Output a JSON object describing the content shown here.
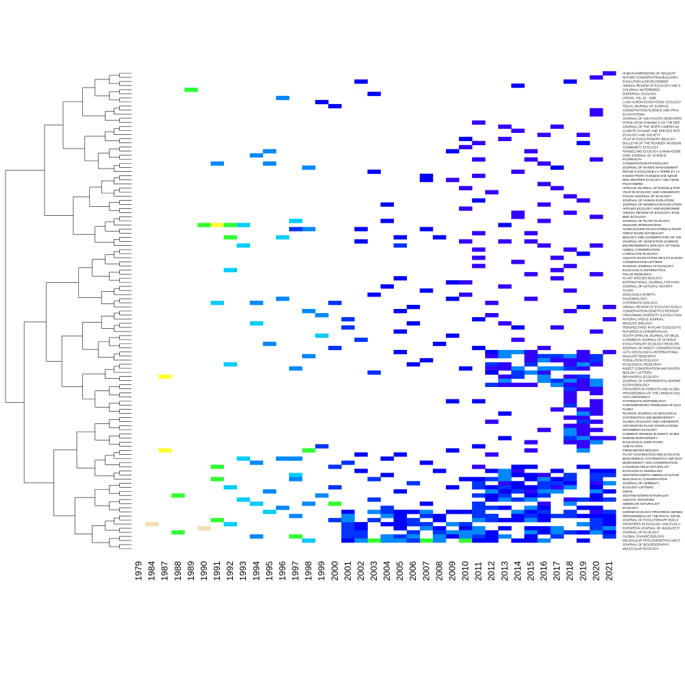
{
  "chart_data": {
    "type": "heatmap",
    "title": "",
    "xlabel": "",
    "ylabel": "",
    "dendrogram": "left",
    "x": [
      "1979",
      "1984",
      "1987",
      "1988",
      "1989",
      "1990",
      "1991",
      "1992",
      "1993",
      "1994",
      "1995",
      "1996",
      "1997",
      "1998",
      "1999",
      "2000",
      "2001",
      "2002",
      "2003",
      "2004",
      "2005",
      "2006",
      "2007",
      "2008",
      "2009",
      "2010",
      "2011",
      "2012",
      "2013",
      "2014",
      "2015",
      "2016",
      "2017",
      "2018",
      "2019",
      "2020",
      "2021"
    ],
    "colorscale": [
      "#f5deb3",
      "#ffff33",
      "#33ff33",
      "#00ccff",
      "#0088ff",
      "#0033ff",
      "#0000ff",
      "#3300ff"
    ],
    "rows": [
      "HUMAN DIMENSIONS OF WILDLIFE",
      "NATURE CONSERVATION-BULGARIA",
      "EVOLUTION & DEVELOPMENT",
      "ANNUAL REVIEW OF ECOLOGY AND S",
      "COLONIAL WATERBIRDS",
      "DISPERSAL ECOLOGY",
      "URSUS, VOL 10 - 1998",
      "LAKE HURON ECOSYSTEM: ECOLOGY",
      "TEXAS JOURNAL OF SCIENCE",
      "CONSERVATION SCIENCE AND PRAC",
      "ECOSYSTEMS",
      "JOURNAL OF ASIA-PACIFIC BIODIVERS",
      "POPULATION DYNAMICS OF THE REE",
      "JOURNAL OF THE NORTH AMERICAN",
      "CLIMATE CHANGE AND SPECIES INTE",
      "ECOLOGY AND SOCIETY",
      "YEAR IN EVOLUTIONARY BIOLOGY",
      "BULLETIN OF THE PEABODY MUSEUM",
      "COMMUNITY ECOLOGY",
      "RANGELAND ECOLOGY & MANAGEME",
      "OHIO JOURNAL OF SCIENCE",
      "ECOHEALTH",
      "CONSERVATION PHYSIOLOGY",
      "JOURNAL OF RANGE MANAGEMENT",
      "REVUE D ECOLOGIE-LA TERRE ET LA",
      "Invasive Plants: Ecological and Agricult",
      "RED SNAPPER ECOLOGY AND FISHE",
      "PACHYDERM",
      "AFRICAN JOURNAL OF RANGE & FOR",
      "YEAR IN ECOLOGY AND CONSERVATI",
      "POLISH JOURNAL OF ECOLOGY",
      "JOURNAL OF HUMAN EVOLUTION",
      "JOURNAL OF MAMMALIAN EVOLUTION",
      "APPLIED ECOLOGY AND ENVIRONME",
      "ANNUAL REVIEW OF ECOLOGY, EVOL",
      "BMC ECOLOGY",
      "JOURNAL OF PLANT ECOLOGY",
      "WILDLIFE MONOGRAPHS",
      "AGRICULTURE ECOSYSTEMS & ENVIR",
      "GREAT BASIN NATURALIST",
      "BIOLOGY AND CONSERVATION OF OW",
      "JOURNAL OF VEGETATION SCIENCE",
      "ENVIRONMENTAL BIOLOGY OF FISHE",
      "ANIMAL CONSERVATION",
      "LANDSCAPE ECOLOGY",
      "AQUATIC ECOSYSTEM HEALTH & MANA",
      "CONSERVATION LETTERS",
      "RUSSIAN JOURNAL OF ECOLOGY",
      "ECOLOGICAL INFORMATICS",
      "POLAR RESEARCH",
      "PLANT SPECIES BIOLOGY",
      "INTERNATIONAL JOURNAL FOR PARA",
      "JOURNAL OF NATURAL HISTORY",
      "TAXON",
      "ZOOLOGICA SCRIPTA",
      "PALEOBIOLOGY",
      "SYSTEMATIC BIOLOGY",
      "ANNUAL REVIEW OF ECOLOGY EVOLU",
      "CONSERVATION GENETICS RESOUR",
      "ORGANISMS DIVERSITY & EVOLUTION",
      "NATURAL AREAS JOURNAL",
      "WILDLIFE BIOLOGY",
      "PERSPECTIVES IN PLANT ECOLOGY E",
      "NATUREZA & CONSERVACAO",
      "SOUTH AFRICAN JOURNAL OF WILDL",
      "CARIBBEAN JOURNAL OF SCIENCE",
      "EVOLUTIONARY ECOLOGY RESEARC",
      "JOURNAL OF INSECT CONSERVATION",
      "ACTA OECOLOGICA-INTERNATIONAL",
      "WILDLIFE RESEARCH",
      "POPULATION ECOLOGY",
      "ECOLOGICAL RESEARCH",
      "INSECT CONSERVATION AND DIVERS",
      "BIOLOGY LETTERS",
      "BEHAVIORAL ECOLOGY",
      "JOURNAL OF EXPERIMENTAL MARINE",
      "ECOHYDROLOGY",
      "FRONTIERS IN FORESTS AND GLOBA",
      "PROCEEDINGS OF THE LINNEAN SOC",
      "ACTA AMAZONICA",
      "SYSTEMATIC ENTOMOLOGY",
      "CONTEMPORARY PROBLEMS OF ECO",
      "FLORA",
      "RUSSIAN JOURNAL OF BIOLOGICAL",
      "SYSTEMATICS AND BIODIVERSITY",
      "GLOBAL ECOLOGY AND CONSERVAT",
      "ARTHROPOD-PLANT INTERACTIONS",
      "MOVEMENT ECOLOGY",
      "CURRENT OPINION IN INSECT SCIEN",
      "MARINE BIODIVERSITY",
      "ECOLOGICAL INDICATORS",
      "AOB PLANTS",
      "FRESHWATER BIOLOGY",
      "PLANT SYSTEMATICS AND EVOLUTIO",
      "BIOCHEMICAL SYSTEMATICS AND ECO",
      "BIODIVERSITY AND CONSERVATION",
      "CANADIAN FIELD-NATURALIST",
      "ECOLOGICAL MODELLING",
      "WESTERN NORTH AMERICAN NATUR",
      "BIOLOGICAL CONSERVATION",
      "JOURNAL OF HEREDITY",
      "ECOLOGY LETTERS",
      "OIKOS",
      "SOUTHEASTERN NATURALIST",
      "AQUATIC INVASIONS",
      "AMERICAN NATURALIST",
      "ECOLOGY",
      "MARINE ECOLOGY PROGRESS SERIES",
      "PROCEEDINGS OF THE ROYAL SOCIE",
      "JOURNAL OF EVOLUTIONARY BIOLO",
      "FRONTIERS IN ECOLOGY AND EVOLU",
      "EUROPEAN JOURNAL OF WILDLIFE R",
      "JOURNAL OF ECOLOGY",
      "GLOBAL CHANGE BIOLOGY",
      "MOLECULAR PHYLOGENETICS AND E",
      "JOURNAL OF BIOGEOGRAPHY",
      "MOLECULAR ECOLOGY"
    ],
    "cells": [
      [
        0,
        36,
        7
      ],
      [
        1,
        35,
        7
      ],
      [
        2,
        17,
        6
      ],
      [
        2,
        33,
        6
      ],
      [
        3,
        29,
        6
      ],
      [
        4,
        4,
        2
      ],
      [
        5,
        18,
        6
      ],
      [
        6,
        11,
        4
      ],
      [
        7,
        14,
        6
      ],
      [
        8,
        15,
        6
      ],
      [
        9,
        35,
        7
      ],
      [
        10,
        35,
        7
      ],
      [
        12,
        26,
        7
      ],
      [
        13,
        28,
        7
      ],
      [
        13,
        32,
        7
      ],
      [
        14,
        29,
        7
      ],
      [
        15,
        34,
        7
      ],
      [
        15,
        31,
        7
      ],
      [
        16,
        25,
        6
      ],
      [
        16,
        28,
        7
      ],
      [
        17,
        34,
        6
      ],
      [
        17,
        26,
        7
      ],
      [
        18,
        25,
        7
      ],
      [
        19,
        10,
        4
      ],
      [
        19,
        24,
        6
      ],
      [
        19,
        30,
        7
      ],
      [
        20,
        9,
        4
      ],
      [
        21,
        26,
        7
      ],
      [
        21,
        30,
        7
      ],
      [
        21,
        35,
        7
      ],
      [
        22,
        6,
        4
      ],
      [
        22,
        10,
        4
      ],
      [
        22,
        31,
        7
      ],
      [
        23,
        13,
        4
      ],
      [
        23,
        32,
        6
      ],
      [
        24,
        18,
        6
      ],
      [
        24,
        29,
        7
      ],
      [
        25,
        22,
        6
      ],
      [
        25,
        26,
        7
      ],
      [
        26,
        24,
        7
      ],
      [
        26,
        22,
        6
      ],
      [
        27,
        31,
        7
      ],
      [
        28,
        25,
        7
      ],
      [
        28,
        32,
        7
      ],
      [
        29,
        27,
        7
      ],
      [
        30,
        33,
        7
      ],
      [
        31,
        26,
        6
      ],
      [
        31,
        34,
        7
      ],
      [
        32,
        19,
        6
      ],
      [
        32,
        31,
        7
      ],
      [
        33,
        25,
        7
      ],
      [
        34,
        29,
        7
      ],
      [
        34,
        33,
        7
      ],
      [
        35,
        29,
        7
      ],
      [
        35,
        35,
        7
      ],
      [
        36,
        12,
        3
      ],
      [
        36,
        19,
        6
      ],
      [
        36,
        31,
        7
      ],
      [
        37,
        5,
        2
      ],
      [
        37,
        6,
        1
      ],
      [
        37,
        7,
        2
      ],
      [
        37,
        8,
        3
      ],
      [
        37,
        28,
        6
      ],
      [
        38,
        13,
        4
      ],
      [
        38,
        12,
        5
      ],
      [
        38,
        17,
        6
      ],
      [
        38,
        22,
        6
      ],
      [
        39,
        26,
        7
      ],
      [
        39,
        30,
        7
      ],
      [
        40,
        7,
        2
      ],
      [
        40,
        11,
        3
      ],
      [
        40,
        20,
        6
      ],
      [
        40,
        23,
        6
      ],
      [
        41,
        17,
        6
      ],
      [
        41,
        25,
        7
      ],
      [
        41,
        28,
        7
      ],
      [
        41,
        30,
        7
      ],
      [
        42,
        8,
        3
      ],
      [
        42,
        20,
        5
      ],
      [
        42,
        31,
        7
      ],
      [
        42,
        35,
        7
      ],
      [
        43,
        26,
        7
      ],
      [
        43,
        33,
        7
      ],
      [
        44,
        34,
        6
      ],
      [
        45,
        26,
        7
      ],
      [
        45,
        32,
        7
      ],
      [
        46,
        29,
        7
      ],
      [
        47,
        26,
        7
      ],
      [
        47,
        33,
        7
      ],
      [
        48,
        7,
        3
      ],
      [
        48,
        32,
        7
      ],
      [
        49,
        30,
        7
      ],
      [
        49,
        35,
        7
      ],
      [
        50,
        20,
        6
      ],
      [
        50,
        32,
        7
      ],
      [
        51,
        24,
        6
      ],
      [
        51,
        25,
        7
      ],
      [
        52,
        19,
        6
      ],
      [
        52,
        28,
        7
      ],
      [
        53,
        22,
        6
      ],
      [
        53,
        33,
        7
      ],
      [
        54,
        18,
        6
      ],
      [
        54,
        25,
        7
      ],
      [
        55,
        11,
        4
      ],
      [
        55,
        24,
        6
      ],
      [
        55,
        30,
        7
      ],
      [
        56,
        6,
        3
      ],
      [
        56,
        9,
        4
      ],
      [
        56,
        15,
        5
      ],
      [
        56,
        27,
        7
      ],
      [
        57,
        21,
        6
      ],
      [
        57,
        34,
        6
      ],
      [
        57,
        36,
        7
      ],
      [
        58,
        13,
        4
      ],
      [
        58,
        20,
        6
      ],
      [
        58,
        33,
        7
      ],
      [
        59,
        14,
        4
      ],
      [
        59,
        27,
        7
      ],
      [
        60,
        16,
        5
      ],
      [
        60,
        26,
        6
      ],
      [
        60,
        36,
        7
      ],
      [
        61,
        9,
        3
      ],
      [
        61,
        21,
        6
      ],
      [
        61,
        28,
        7
      ],
      [
        62,
        16,
        5
      ],
      [
        62,
        29,
        6
      ],
      [
        62,
        32,
        7
      ],
      [
        63,
        20,
        6
      ],
      [
        63,
        35,
        7
      ],
      [
        64,
        14,
        3
      ],
      [
        64,
        24,
        6
      ],
      [
        65,
        17,
        5
      ],
      [
        65,
        29,
        7
      ],
      [
        66,
        10,
        4
      ],
      [
        66,
        23,
        6
      ],
      [
        67,
        15,
        5
      ],
      [
        67,
        26,
        6
      ],
      [
        67,
        31,
        7
      ],
      [
        68,
        20,
        6
      ],
      [
        68,
        27,
        6
      ],
      [
        68,
        36,
        7
      ],
      [
        69,
        13,
        4
      ],
      [
        69,
        30,
        7
      ],
      [
        70,
        22,
        6
      ],
      [
        70,
        33,
        7
      ],
      [
        71,
        7,
        3
      ],
      [
        71,
        21,
        6
      ],
      [
        71,
        35,
        7
      ],
      [
        72,
        12,
        4
      ],
      [
        72,
        25,
        6
      ],
      [
        72,
        34,
        7
      ],
      [
        73,
        18,
        5
      ],
      [
        73,
        27,
        6
      ],
      [
        73,
        31,
        7
      ],
      [
        74,
        2,
        1
      ],
      [
        74,
        28,
        7
      ],
      [
        75,
        34,
        7
      ],
      [
        76,
        34,
        7
      ],
      [
        77,
        34,
        7
      ],
      [
        78,
        33,
        7
      ],
      [
        79,
        33,
        7
      ],
      [
        80,
        24,
        6
      ],
      [
        80,
        26,
        6
      ],
      [
        81,
        35,
        7
      ],
      [
        82,
        32,
        7
      ],
      [
        82,
        34,
        7
      ],
      [
        83,
        28,
        6
      ],
      [
        84,
        34,
        7
      ],
      [
        85,
        27,
        7
      ],
      [
        85,
        35,
        7
      ],
      [
        86,
        33,
        7
      ],
      [
        87,
        31,
        7
      ],
      [
        87,
        35,
        7
      ],
      [
        88,
        34,
        7
      ],
      [
        89,
        28,
        6
      ],
      [
        89,
        36,
        7
      ],
      [
        90,
        30,
        7
      ],
      [
        90,
        33,
        7
      ],
      [
        91,
        14,
        5
      ],
      [
        91,
        26,
        6
      ],
      [
        92,
        2,
        1
      ],
      [
        92,
        13,
        2
      ],
      [
        92,
        24,
        6
      ],
      [
        92,
        30,
        7
      ],
      [
        93,
        17,
        6
      ],
      [
        93,
        20,
        6
      ],
      [
        93,
        27,
        7
      ],
      [
        94,
        8,
        3
      ],
      [
        94,
        11,
        4
      ],
      [
        94,
        12,
        4
      ],
      [
        94,
        19,
        6
      ],
      [
        95,
        9,
        4
      ],
      [
        95,
        16,
        5
      ],
      [
        95,
        22,
        6
      ],
      [
        96,
        6,
        2
      ],
      [
        96,
        15,
        5
      ],
      [
        96,
        26,
        7
      ],
      [
        97,
        17,
        6
      ],
      [
        97,
        23,
        6
      ],
      [
        97,
        29,
        7
      ],
      [
        98,
        12,
        3
      ],
      [
        98,
        19,
        6
      ],
      [
        98,
        31,
        7
      ],
      [
        99,
        6,
        2
      ],
      [
        99,
        12,
        4
      ],
      [
        99,
        18,
        5
      ],
      [
        99,
        25,
        6
      ],
      [
        100,
        21,
        5
      ],
      [
        100,
        28,
        7
      ],
      [
        100,
        35,
        7
      ],
      [
        101,
        7,
        3
      ],
      [
        101,
        15,
        5
      ],
      [
        101,
        24,
        6
      ],
      [
        101,
        32,
        7
      ],
      [
        102,
        10,
        4
      ],
      [
        102,
        20,
        6
      ],
      [
        102,
        30,
        7
      ],
      [
        103,
        3,
        2
      ],
      [
        103,
        14,
        4
      ],
      [
        103,
        27,
        6
      ],
      [
        104,
        8,
        3
      ],
      [
        104,
        18,
        5
      ],
      [
        104,
        33,
        7
      ],
      [
        105,
        9,
        3
      ],
      [
        105,
        13,
        4
      ],
      [
        105,
        15,
        2
      ],
      [
        105,
        22,
        6
      ],
      [
        105,
        31,
        7
      ],
      [
        106,
        11,
        4
      ],
      [
        106,
        19,
        5
      ],
      [
        106,
        28,
        6
      ],
      [
        107,
        10,
        3
      ],
      [
        107,
        24,
        6
      ],
      [
        107,
        35,
        7
      ],
      [
        108,
        12,
        4
      ],
      [
        108,
        23,
        6
      ],
      [
        108,
        34,
        6
      ],
      [
        109,
        6,
        2
      ],
      [
        109,
        15,
        5
      ],
      [
        109,
        29,
        6
      ],
      [
        110,
        1,
        0
      ],
      [
        110,
        7,
        3
      ],
      [
        110,
        16,
        5
      ],
      [
        110,
        36,
        6
      ],
      [
        111,
        5,
        0
      ],
      [
        111,
        20,
        6
      ],
      [
        111,
        30,
        6
      ],
      [
        112,
        3,
        2
      ],
      [
        112,
        17,
        5
      ],
      [
        112,
        27,
        6
      ],
      [
        113,
        9,
        4
      ],
      [
        113,
        12,
        2
      ],
      [
        113,
        26,
        5
      ],
      [
        114,
        13,
        3
      ],
      [
        114,
        18,
        2
      ],
      [
        114,
        22,
        2
      ],
      [
        114,
        25,
        2
      ]
    ],
    "bands": [
      {
        "row_from": 107,
        "row_to": 114,
        "col_from": 16,
        "col_to": 36,
        "level": 6
      },
      {
        "row_from": 96,
        "row_to": 106,
        "col_from": 26,
        "col_to": 36,
        "level": 6
      },
      {
        "row_from": 68,
        "row_to": 76,
        "col_from": 27,
        "col_to": 35,
        "level": 7
      },
      {
        "row_from": 76,
        "row_to": 92,
        "col_from": 33,
        "col_to": 35,
        "level": 7
      }
    ]
  }
}
